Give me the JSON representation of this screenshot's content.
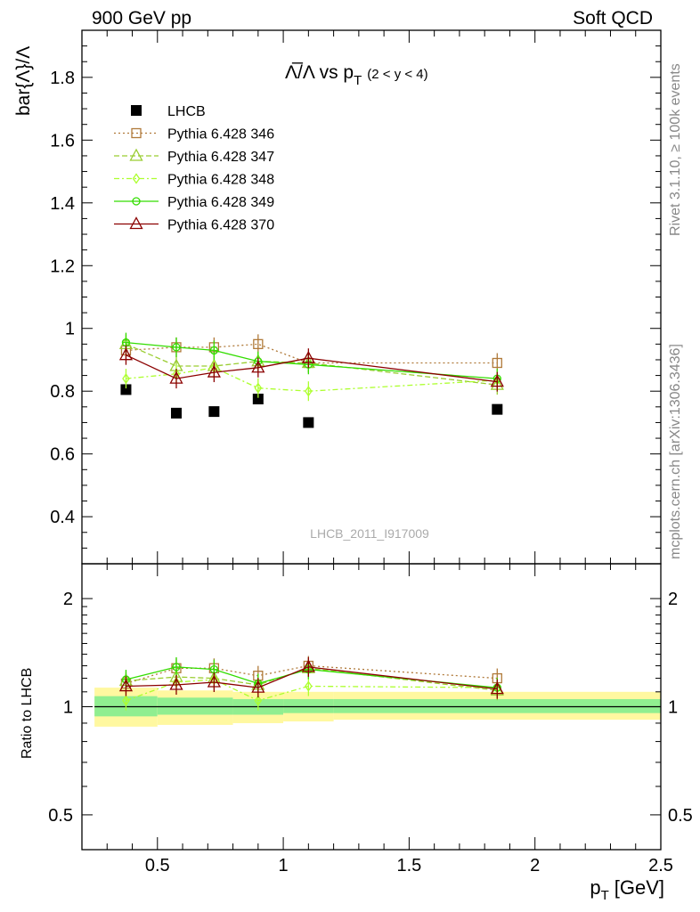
{
  "header": {
    "left": "900 GeV pp",
    "right": "Soft QCD"
  },
  "side_labels": {
    "top": "Rivet 3.1.10, ≥ 100k events",
    "bottom": "mcplots.cern.ch [arXiv:1306.3436]"
  },
  "watermark": "LHCB_2011_I917009",
  "chart_data": [
    {
      "type": "scatter",
      "panel": "main",
      "title_parts": {
        "base": "Λ̅/Λ vs p",
        "sub": "T",
        "cond": "(2 < y < 4)"
      },
      "ylabel": "bar{Λ}/Λ",
      "ylim": [
        0.25,
        1.95
      ],
      "yticks": [
        0.4,
        0.6,
        0.8,
        1.0,
        1.2,
        1.4,
        1.6,
        1.8
      ],
      "ytick_labels": [
        "0.4",
        "0.6",
        "0.8",
        "1",
        "1.2",
        "1.4",
        "1.6",
        "1.8"
      ],
      "xlim": [
        0.2,
        2.5
      ],
      "x": [
        0.375,
        0.575,
        0.725,
        0.9,
        1.1,
        1.85
      ],
      "series": [
        {
          "name": "LHCB",
          "color": "#000000",
          "marker": "square-filled",
          "dash": "none",
          "values": [
            0.805,
            0.73,
            0.735,
            0.775,
            0.7,
            0.742
          ]
        },
        {
          "name": "Pythia 6.428 346",
          "color": "#b07a3a",
          "marker": "square-open",
          "dash": "2,3",
          "values": [
            0.93,
            0.94,
            0.94,
            0.95,
            0.89,
            0.89
          ]
        },
        {
          "name": "Pythia 6.428 347",
          "color": "#9acd32",
          "marker": "triangle-open",
          "dash": "6,3",
          "values": [
            0.95,
            0.88,
            0.88,
            0.895,
            0.89,
            0.82
          ]
        },
        {
          "name": "Pythia 6.428 348",
          "color": "#adff2f",
          "marker": "diamond-open",
          "dash": "6,3,2,3",
          "values": [
            0.84,
            0.855,
            0.875,
            0.81,
            0.8,
            0.835
          ]
        },
        {
          "name": "Pythia 6.428 349",
          "color": "#33dd00",
          "marker": "circle-open",
          "dash": "none",
          "values": [
            0.955,
            0.94,
            0.93,
            0.895,
            0.885,
            0.84
          ]
        },
        {
          "name": "Pythia 6.428 370",
          "color": "#8b0000",
          "marker": "triangle-open",
          "dash": "none",
          "values": [
            0.915,
            0.84,
            0.86,
            0.875,
            0.905,
            0.83
          ]
        }
      ]
    },
    {
      "type": "scatter",
      "panel": "ratio",
      "ylabel": "Ratio to LHCB",
      "yscale": "log",
      "ylim": [
        0.4,
        2.5
      ],
      "yticks": [
        0.5,
        1,
        2
      ],
      "ytick_labels": [
        "0.5",
        "1",
        "2"
      ],
      "xlabel_parts": {
        "base": "p",
        "sub": "T",
        "rest": "[GeV]"
      },
      "xlim": [
        0.2,
        2.5
      ],
      "xticks": [
        0.5,
        1,
        1.5,
        2,
        2.5
      ],
      "xtick_labels": [
        "0.5",
        "1",
        "1.5",
        "2",
        "2.5"
      ],
      "bands": {
        "edges": [
          0.25,
          0.5,
          0.8,
          1.0,
          1.2,
          2.5
        ],
        "yellow_lo": [
          0.88,
          0.89,
          0.9,
          0.91,
          0.92
        ],
        "yellow_hi": [
          1.13,
          1.11,
          1.1,
          1.1,
          1.1
        ],
        "green_lo": [
          0.94,
          0.95,
          0.95,
          0.96,
          0.96
        ],
        "green_hi": [
          1.07,
          1.06,
          1.05,
          1.05,
          1.05
        ]
      },
      "x": [
        0.375,
        0.575,
        0.725,
        0.9,
        1.1,
        1.85
      ],
      "series": [
        {
          "name": "Pythia 6.428 346",
          "values": [
            1.16,
            1.28,
            1.28,
            1.22,
            1.3,
            1.2
          ]
        },
        {
          "name": "Pythia 6.428 347",
          "values": [
            1.18,
            1.21,
            1.2,
            1.15,
            1.28,
            1.11
          ]
        },
        {
          "name": "Pythia 6.428 348",
          "values": [
            1.04,
            1.17,
            1.19,
            1.04,
            1.14,
            1.13
          ]
        },
        {
          "name": "Pythia 6.428 349",
          "values": [
            1.19,
            1.29,
            1.27,
            1.16,
            1.27,
            1.13
          ]
        },
        {
          "name": "Pythia 6.428 370",
          "values": [
            1.14,
            1.15,
            1.17,
            1.13,
            1.29,
            1.12
          ]
        }
      ]
    }
  ]
}
